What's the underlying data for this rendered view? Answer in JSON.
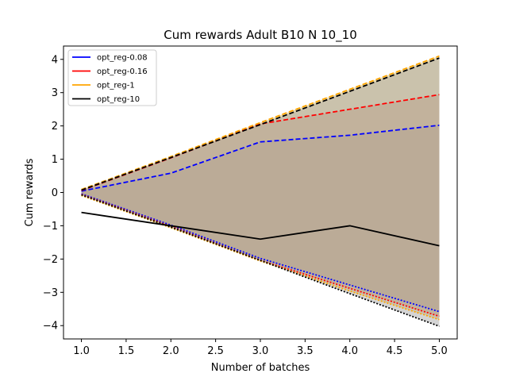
{
  "chart_data": {
    "type": "line",
    "title": "Cum rewards Adult B10 N 10_10",
    "xlabel": "Number of batches",
    "ylabel": "Cum rewards",
    "xlim": [
      0.8,
      5.2
    ],
    "ylim": [
      -4.4,
      4.4
    ],
    "xticks": [
      "1.0",
      "1.5",
      "2.0",
      "2.5",
      "3.0",
      "3.5",
      "4.0",
      "4.5",
      "5.0"
    ],
    "yticks": [
      "−4",
      "−3",
      "−2",
      "−1",
      "0",
      "1",
      "2",
      "3",
      "4"
    ],
    "grid": false,
    "legend_position": "top-left",
    "x": [
      1,
      2,
      3,
      4,
      5
    ],
    "series": [
      {
        "name": "opt_reg-0.08",
        "color": "#0000ff",
        "upper": [
          0.04,
          0.58,
          1.52,
          1.72,
          2.02
        ],
        "lower": [
          -0.04,
          -0.98,
          -1.98,
          -2.78,
          -3.58
        ],
        "fill": "#8888aa"
      },
      {
        "name": "opt_reg-0.16",
        "color": "#ff0000",
        "upper": [
          0.06,
          1.04,
          2.06,
          2.5,
          2.94
        ],
        "lower": [
          -0.06,
          -1.02,
          -2.04,
          -2.88,
          -3.72
        ],
        "fill": "#c08080"
      },
      {
        "name": "opt_reg-1",
        "color": "#ffa500",
        "upper": [
          0.09,
          1.08,
          2.1,
          3.1,
          4.1
        ],
        "lower": [
          -0.09,
          -1.06,
          -2.06,
          -2.96,
          -3.82
        ],
        "fill": "#d8b860"
      },
      {
        "name": "opt_reg-10",
        "color": "#000000",
        "upper": [
          0.07,
          1.05,
          2.04,
          3.04,
          4.04
        ],
        "lower": [
          -0.07,
          -1.04,
          -2.04,
          -3.04,
          -4.02
        ],
        "fill": "#aaaaaa",
        "mean": [
          -0.6,
          -1.0,
          -1.4,
          -1.0,
          -1.6
        ]
      }
    ]
  }
}
